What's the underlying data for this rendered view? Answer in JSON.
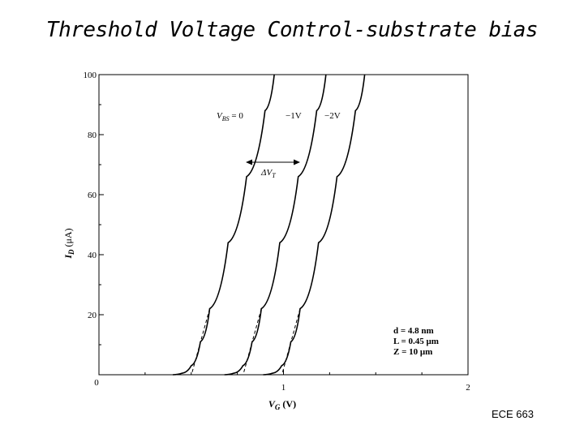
{
  "slide": {
    "title": "Threshold Voltage Control-substrate bias",
    "footer": "ECE 663"
  },
  "chart_data": {
    "type": "line",
    "title": "",
    "xlabel_main": "V",
    "xlabel_sub": "G",
    "xlabel_unit": " (V)",
    "ylabel_main": "I",
    "ylabel_sub": "D",
    "ylabel_unit": " (μA)",
    "xlim": [
      0,
      2
    ],
    "ylim": [
      0,
      100
    ],
    "x_ticks": [
      0,
      1,
      2
    ],
    "y_ticks": [
      0,
      20,
      40,
      60,
      80,
      100
    ],
    "series": [
      {
        "name": "VBS = 0",
        "threshold": 0.55,
        "x": [
          0.4,
          0.45,
          0.5,
          0.55,
          0.6,
          0.7,
          0.8,
          0.9,
          0.95
        ],
        "y": [
          0,
          0.5,
          3,
          11,
          22,
          44,
          66,
          88,
          100
        ]
      },
      {
        "name": "-1V",
        "threshold": 0.83,
        "x": [
          0.68,
          0.73,
          0.78,
          0.83,
          0.88,
          0.98,
          1.08,
          1.18,
          1.23
        ],
        "y": [
          0,
          0.5,
          3,
          11,
          22,
          44,
          66,
          88,
          100
        ]
      },
      {
        "name": "-2V",
        "threshold": 1.04,
        "x": [
          0.89,
          0.94,
          0.99,
          1.04,
          1.09,
          1.19,
          1.29,
          1.39,
          1.44
        ],
        "y": [
          0,
          0.5,
          3,
          11,
          22,
          44,
          66,
          88,
          100
        ]
      }
    ],
    "annotations": {
      "vbs_main": "V",
      "vbs_sub": "BS",
      "vbs_val": " = 0",
      "label_1v": "−1V",
      "label_2v": "−2V",
      "delta_main": "ΔV",
      "delta_sub": "T",
      "param_d": "d = 4.8 nm",
      "param_L": "L = 0.45 μm",
      "param_Z": "Z = 10 μm"
    },
    "grid": false
  }
}
